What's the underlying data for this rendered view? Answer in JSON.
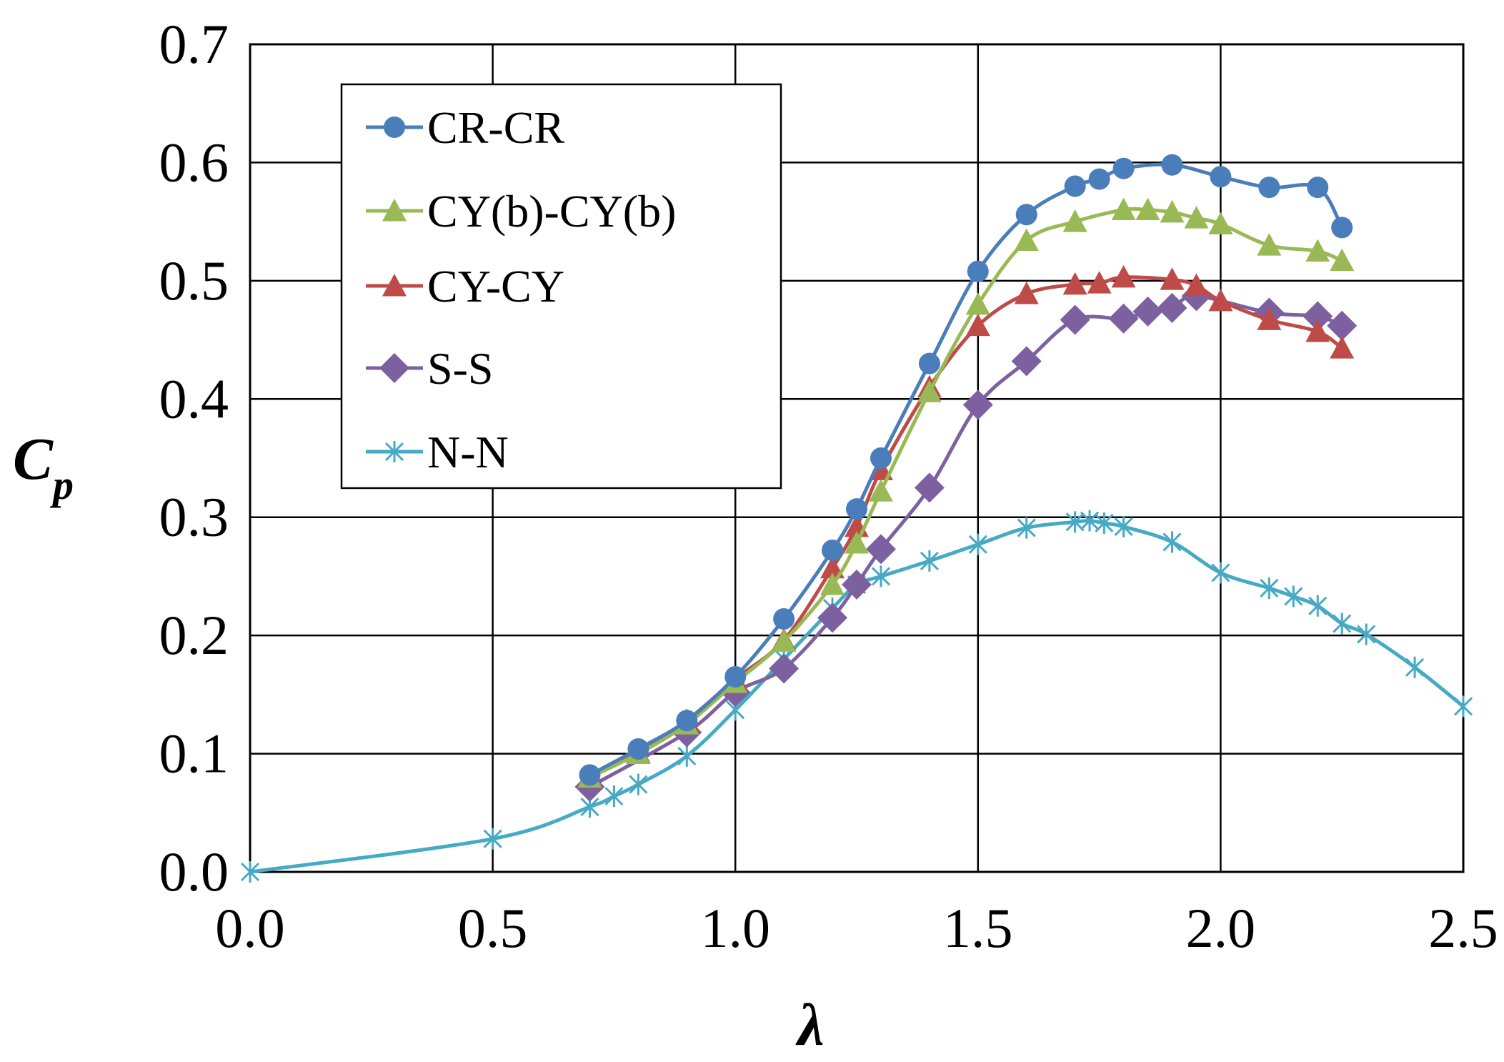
{
  "chart_data": {
    "type": "line",
    "title": "",
    "xlabel": "λ",
    "ylabel": "C",
    "ylabel_subscript": "p",
    "xlim": [
      0.0,
      2.5
    ],
    "ylim": [
      0.0,
      0.7
    ],
    "xticks": [
      "0.0",
      "0.5",
      "1.0",
      "1.5",
      "2.0",
      "2.5"
    ],
    "yticks": [
      "0.0",
      "0.1",
      "0.2",
      "0.3",
      "0.4",
      "0.5",
      "0.6",
      "0.7"
    ],
    "grid": true,
    "legend_position": "top-left",
    "series": [
      {
        "name": "CR-CR",
        "color": "#4a7ebb",
        "marker": "circle",
        "x": [
          0.7,
          0.8,
          0.9,
          1.0,
          1.1,
          1.2,
          1.25,
          1.3,
          1.4,
          1.5,
          1.6,
          1.7,
          1.75,
          1.8,
          1.9,
          2.0,
          2.1,
          2.2,
          2.25
        ],
        "y": [
          0.082,
          0.104,
          0.128,
          0.165,
          0.214,
          0.272,
          0.307,
          0.35,
          0.43,
          0.508,
          0.556,
          0.58,
          0.586,
          0.595,
          0.598,
          0.588,
          0.579,
          0.579,
          0.545
        ]
      },
      {
        "name": "CY(b)-CY(b)",
        "color": "#98b954",
        "marker": "triangle",
        "x": [
          0.7,
          0.8,
          0.9,
          1.0,
          1.1,
          1.2,
          1.25,
          1.3,
          1.4,
          1.5,
          1.6,
          1.7,
          1.8,
          1.85,
          1.9,
          1.95,
          2.0,
          2.1,
          2.2,
          2.25
        ],
        "y": [
          0.08,
          0.1,
          0.125,
          0.16,
          0.195,
          0.243,
          0.278,
          0.322,
          0.406,
          0.48,
          0.534,
          0.55,
          0.56,
          0.56,
          0.558,
          0.553,
          0.548,
          0.53,
          0.525,
          0.517
        ]
      },
      {
        "name": "CY-CY",
        "color": "#be4b48",
        "marker": "triangle",
        "x": [
          0.7,
          0.8,
          0.9,
          1.0,
          1.1,
          1.2,
          1.25,
          1.3,
          1.4,
          1.5,
          1.6,
          1.7,
          1.75,
          1.8,
          1.9,
          1.95,
          2.0,
          2.1,
          2.2,
          2.25
        ],
        "y": [
          0.08,
          0.101,
          0.128,
          0.163,
          0.196,
          0.257,
          0.292,
          0.34,
          0.41,
          0.462,
          0.489,
          0.497,
          0.498,
          0.503,
          0.501,
          0.496,
          0.483,
          0.467,
          0.457,
          0.443
        ]
      },
      {
        "name": "S-S",
        "color": "#7d60a0",
        "marker": "diamond",
        "x": [
          0.7,
          0.9,
          1.0,
          1.1,
          1.2,
          1.25,
          1.3,
          1.4,
          1.5,
          1.6,
          1.7,
          1.8,
          1.85,
          1.9,
          1.95,
          2.1,
          2.2,
          2.25
        ],
        "y": [
          0.072,
          0.118,
          0.152,
          0.172,
          0.215,
          0.243,
          0.273,
          0.325,
          0.395,
          0.432,
          0.467,
          0.468,
          0.474,
          0.477,
          0.487,
          0.473,
          0.47,
          0.462
        ]
      },
      {
        "name": "N-N",
        "color": "#46aac4",
        "marker": "asterisk",
        "x": [
          0.0,
          0.5,
          0.7,
          0.75,
          0.8,
          0.9,
          1.0,
          1.1,
          1.2,
          1.25,
          1.3,
          1.4,
          1.5,
          1.6,
          1.7,
          1.73,
          1.76,
          1.8,
          1.9,
          2.0,
          2.1,
          2.15,
          2.2,
          2.25,
          2.3,
          2.4,
          2.5
        ],
        "y": [
          0.0,
          0.028,
          0.055,
          0.064,
          0.074,
          0.098,
          0.137,
          0.18,
          0.223,
          0.243,
          0.25,
          0.263,
          0.277,
          0.291,
          0.296,
          0.297,
          0.295,
          0.292,
          0.279,
          0.253,
          0.24,
          0.233,
          0.225,
          0.21,
          0.201,
          0.173,
          0.14
        ]
      }
    ]
  }
}
